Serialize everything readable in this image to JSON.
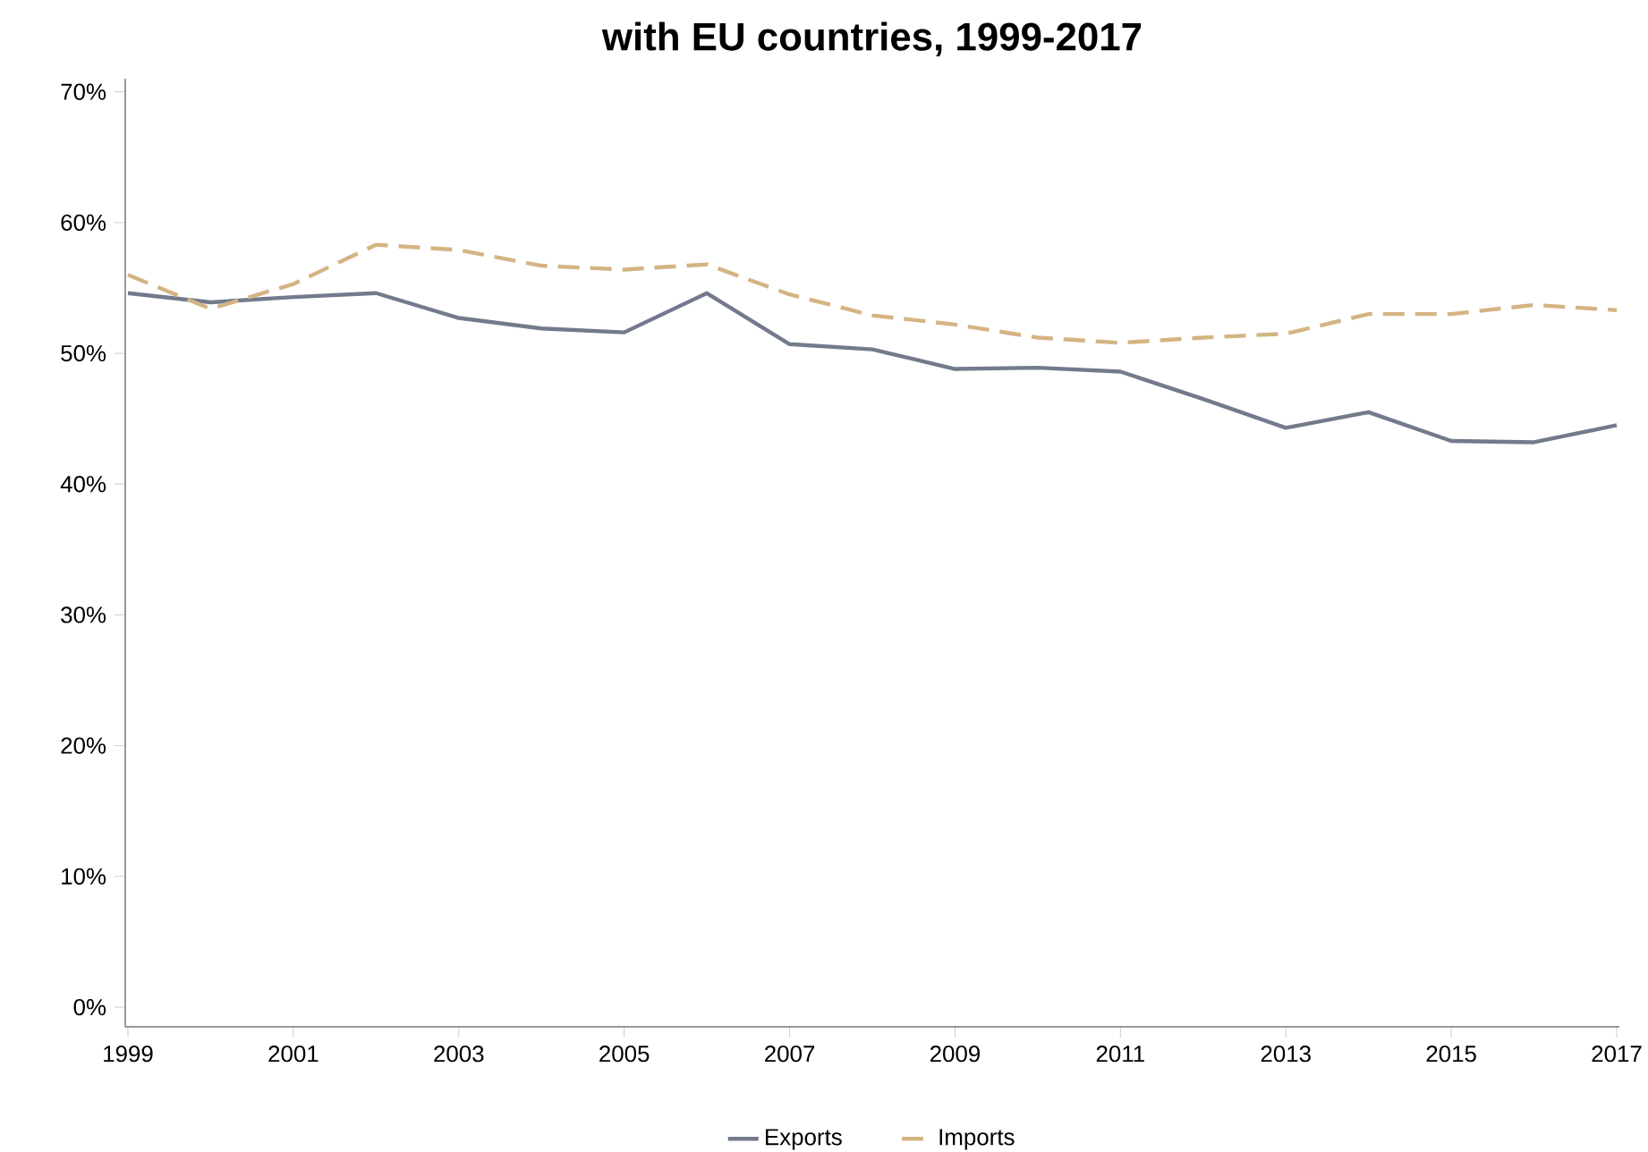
{
  "chart_data": {
    "type": "line",
    "title": "with EU countries, 1999-2017",
    "x": [
      1999,
      2000,
      2001,
      2002,
      2003,
      2004,
      2005,
      2006,
      2007,
      2008,
      2009,
      2010,
      2011,
      2012,
      2013,
      2014,
      2015,
      2016,
      2017
    ],
    "series": [
      {
        "name": "Exports",
        "color": "#737a8c",
        "line_style": "solid",
        "values": [
          54.6,
          53.9,
          54.3,
          54.6,
          52.7,
          51.9,
          51.6,
          54.6,
          50.7,
          50.3,
          48.8,
          48.9,
          48.6,
          46.5,
          44.3,
          45.5,
          43.3,
          43.2,
          44.5
        ]
      },
      {
        "name": "Imports",
        "color": "#d4b483",
        "line_style": "dashed",
        "values": [
          56.0,
          53.4,
          55.3,
          58.3,
          57.9,
          56.7,
          56.4,
          56.8,
          54.5,
          52.9,
          52.2,
          51.2,
          50.8,
          51.2,
          51.5,
          53.0,
          53.0,
          53.7,
          53.3
        ]
      }
    ],
    "xlim": [
      1999,
      2017
    ],
    "xticks": [
      1999,
      2001,
      2003,
      2005,
      2007,
      2009,
      2011,
      2013,
      2015,
      2017
    ],
    "ylim": [
      -1.5,
      71
    ],
    "yticks": [
      {
        "value": 0,
        "label": "0%"
      },
      {
        "value": 10,
        "label": "10%"
      },
      {
        "value": 20,
        "label": "20%"
      },
      {
        "value": 30,
        "label": "30%"
      },
      {
        "value": 40,
        "label": "40%"
      },
      {
        "value": 50,
        "label": "50%"
      },
      {
        "value": 60,
        "label": "60%"
      },
      {
        "value": 70,
        "label": "70%"
      }
    ],
    "grid": false,
    "legend": "bottom",
    "marker": "none"
  }
}
